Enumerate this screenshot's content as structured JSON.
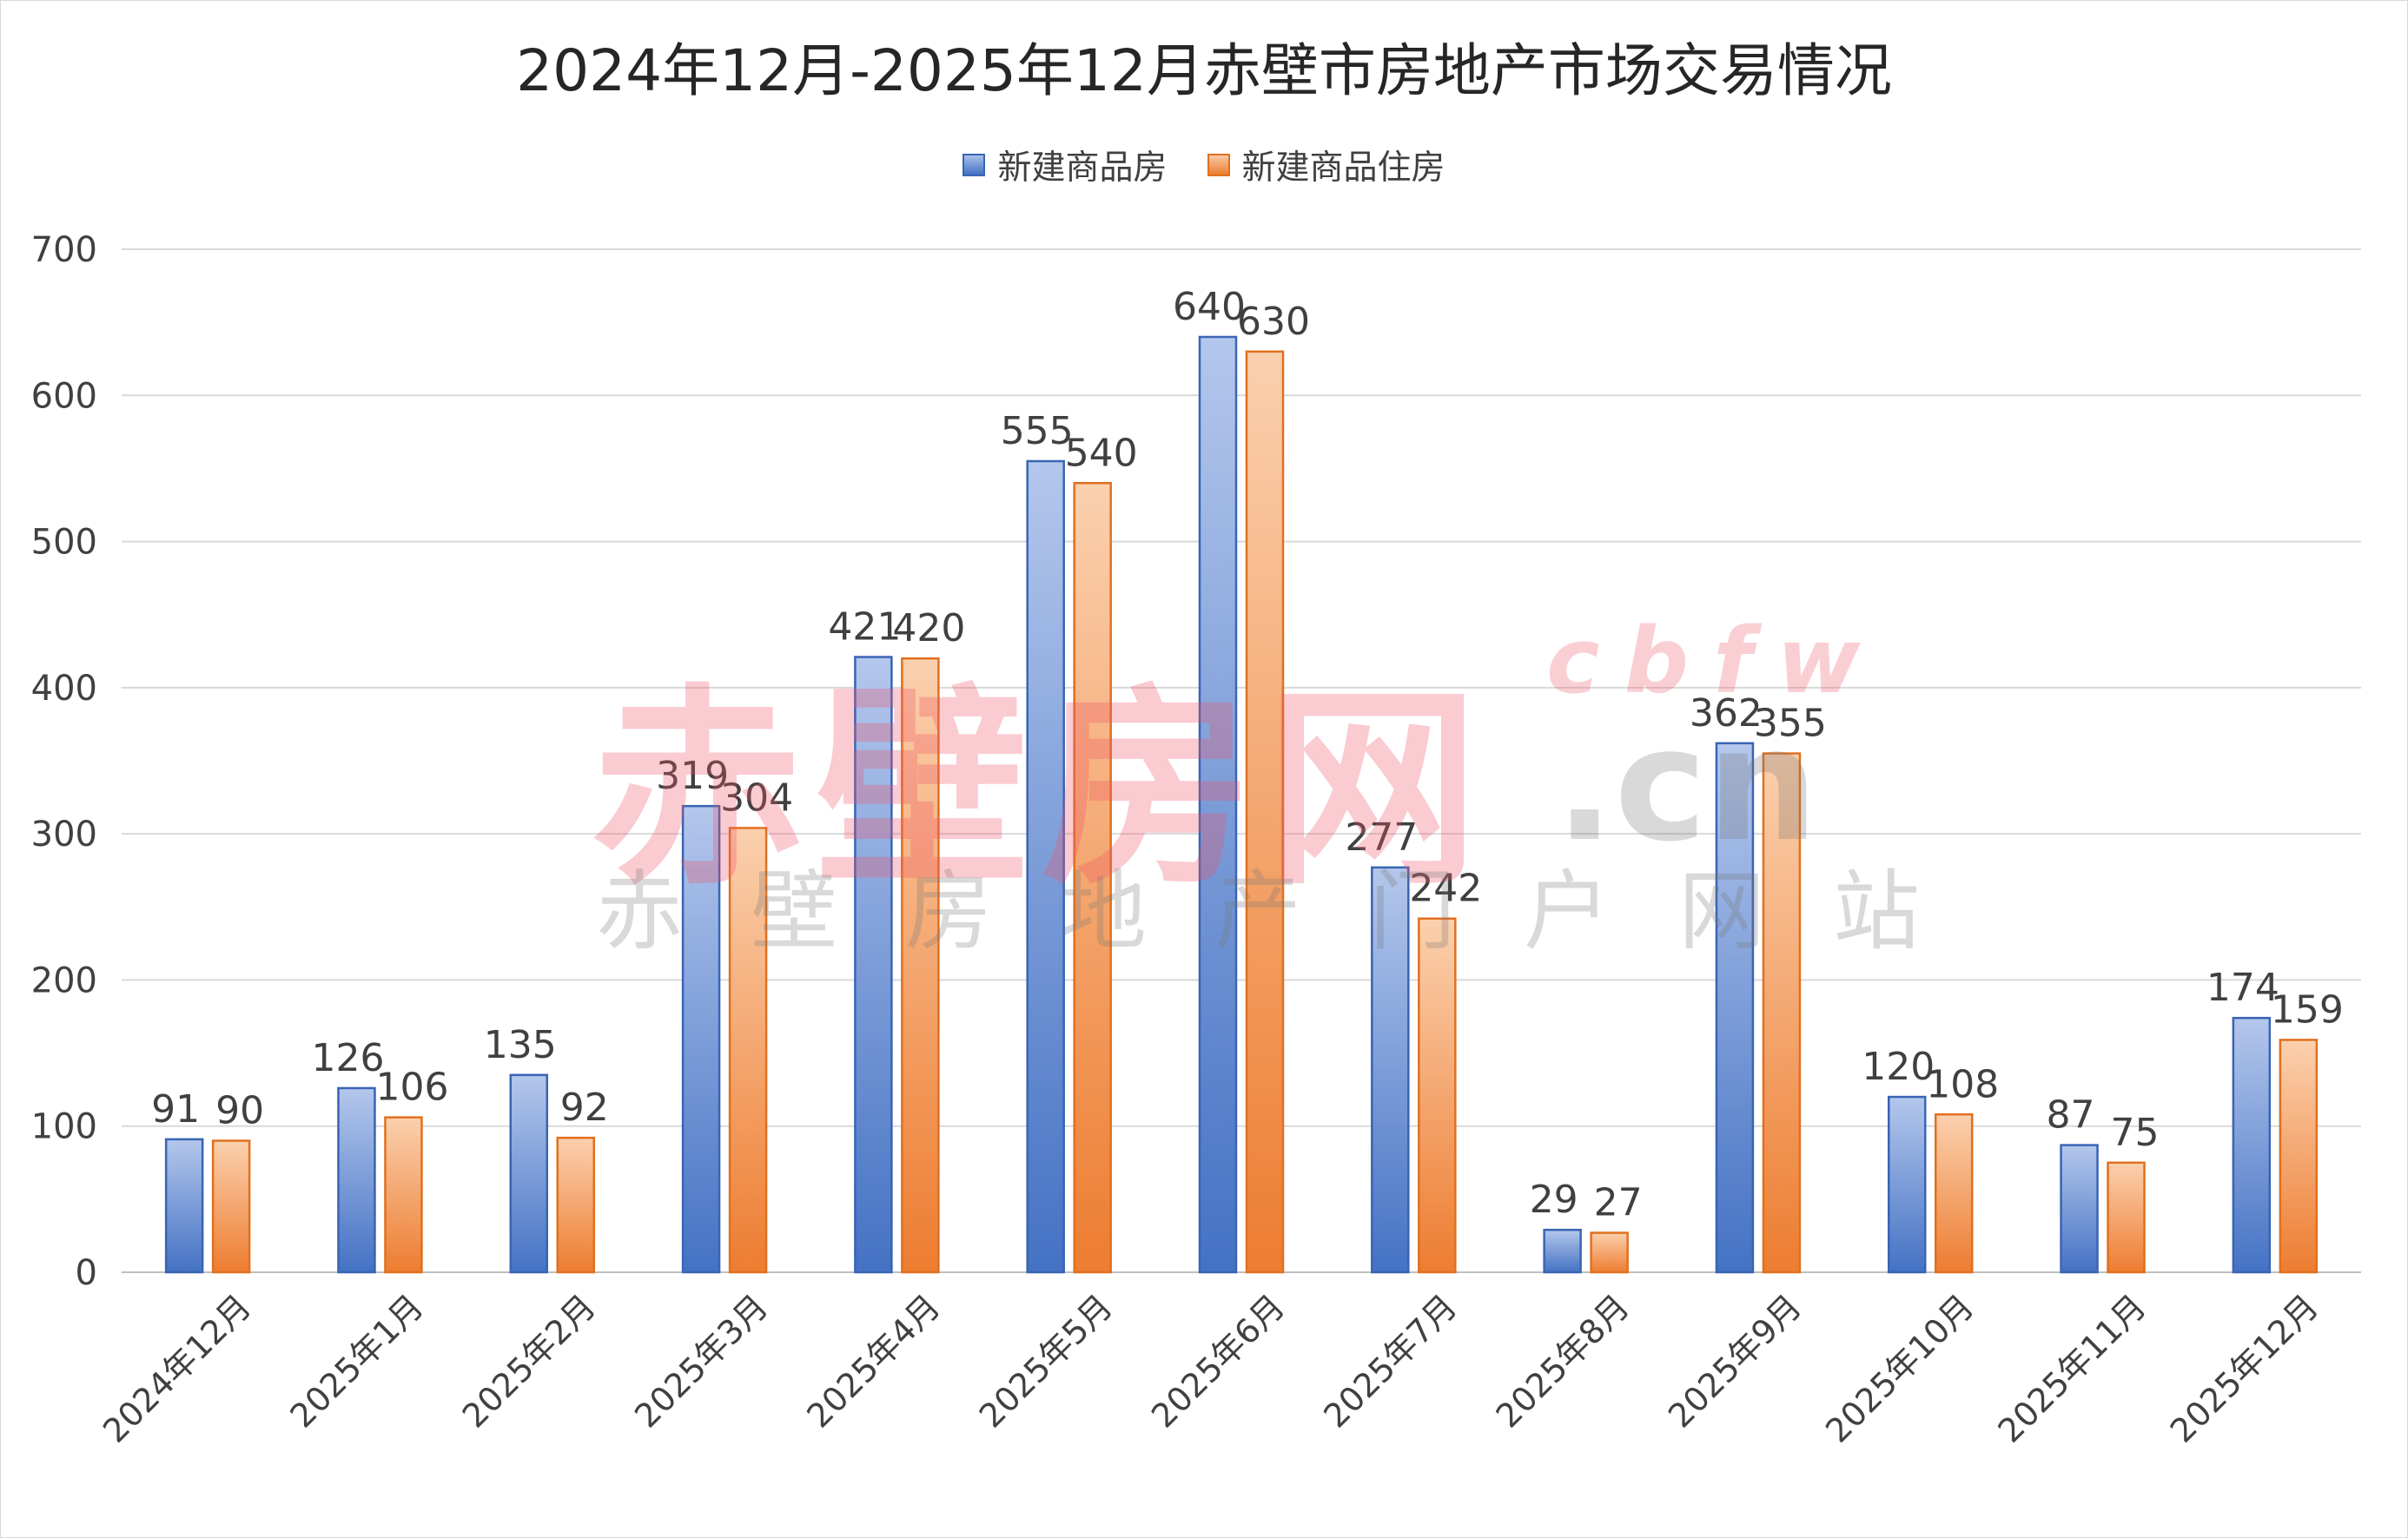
{
  "chart_data": {
    "type": "bar",
    "title": "2024年12月-2025年12月赤壁市房地产市场交易情况",
    "xlabel": "",
    "ylabel": "",
    "ylim": [
      0,
      700
    ],
    "yticks": [
      0,
      100,
      200,
      300,
      400,
      500,
      600,
      700
    ],
    "grid": true,
    "legend_position": "top",
    "categories": [
      "2024年12月",
      "2025年1月",
      "2025年2月",
      "2025年3月",
      "2025年4月",
      "2025年5月",
      "2025年6月",
      "2025年7月",
      "2025年8月",
      "2025年9月",
      "2025年10月",
      "2025年11月",
      "2025年12月"
    ],
    "series": [
      {
        "name": "新建商品房",
        "values": [
          91,
          126,
          135,
          319,
          421,
          555,
          640,
          277,
          29,
          362,
          120,
          87,
          174
        ],
        "color": "#4472c4"
      },
      {
        "name": "新建商品住房",
        "values": [
          90,
          106,
          92,
          304,
          420,
          540,
          630,
          242,
          27,
          355,
          108,
          75,
          159
        ],
        "color": "#ed7d31"
      }
    ]
  },
  "watermark": {
    "main": "赤壁房网",
    "url_top": "cbfw",
    "url_bottom": ".cn",
    "subtitle": "赤壁房地产门户网站"
  }
}
